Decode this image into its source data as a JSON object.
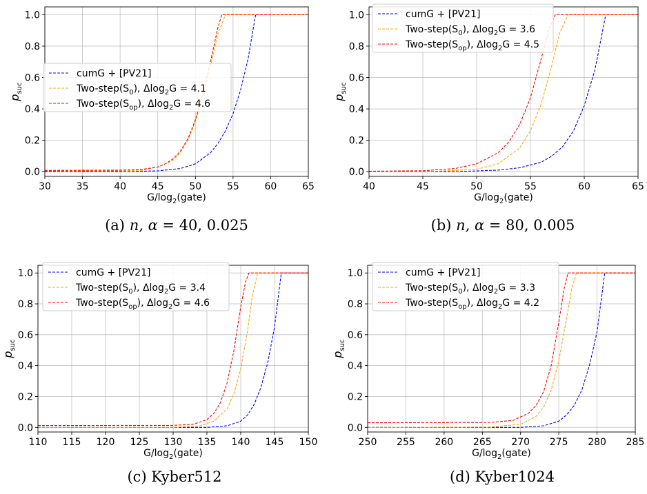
{
  "chart_data": [
    {
      "type": "line",
      "caption": {
        "prefix": "(a) ",
        "var": "n, α",
        "eq": " = 40, 0.025"
      },
      "xlabel": {
        "main": "G/log",
        "sub": "2",
        "tail": "(gate)"
      },
      "ylabel": {
        "main": "p",
        "sub": "suc"
      },
      "xlim": [
        30,
        65
      ],
      "ylim": [
        -0.03,
        1.05
      ],
      "xticks": [
        "30",
        "35",
        "40",
        "45",
        "50",
        "55",
        "60",
        "65"
      ],
      "yticks": [
        "0.0",
        "0.2",
        "0.4",
        "0.6",
        "0.8",
        "1.0"
      ],
      "grid": true,
      "legend_position": "center-left",
      "series": [
        {
          "legend": {
            "main": "cumG + [PV21]"
          },
          "color": "#0000ff",
          "x": [
            30,
            40,
            45,
            48,
            50,
            52,
            53,
            54,
            55,
            56,
            57,
            58,
            65
          ],
          "y": [
            0.0,
            0.0,
            0.005,
            0.02,
            0.05,
            0.12,
            0.18,
            0.26,
            0.37,
            0.52,
            0.72,
            1.0,
            1.0
          ]
        },
        {
          "legend": {
            "main": "Two-step(S",
            "sub": "0",
            "tail": "), Δlog",
            "sub2": "2",
            "tail2": "G = 4.1"
          },
          "color": "#ffa500",
          "x": [
            30,
            40,
            43,
            45,
            47,
            48,
            49,
            50,
            51,
            52,
            53,
            54,
            65
          ],
          "y": [
            0.005,
            0.005,
            0.01,
            0.03,
            0.07,
            0.12,
            0.2,
            0.32,
            0.48,
            0.67,
            0.88,
            1.0,
            1.0
          ]
        },
        {
          "legend": {
            "main": "Two-step(S",
            "sub": "op",
            "tail": "), Δlog",
            "sub2": "2",
            "tail2": "G = 4.6"
          },
          "color": "#ff0000",
          "x": [
            30,
            40,
            43,
            45,
            46,
            47,
            48,
            49,
            50,
            51,
            52,
            53,
            53.5,
            65
          ],
          "y": [
            0.008,
            0.01,
            0.015,
            0.03,
            0.05,
            0.08,
            0.13,
            0.21,
            0.33,
            0.5,
            0.7,
            0.92,
            1.0,
            1.0
          ]
        }
      ]
    },
    {
      "type": "line",
      "caption": {
        "prefix": "(b) ",
        "var": "n, α",
        "eq": " = 80, 0.005"
      },
      "xlabel": {
        "main": "G/log",
        "sub": "2",
        "tail": "(gate)"
      },
      "ylabel": {
        "main": "p",
        "sub": "suc"
      },
      "xlim": [
        40,
        65
      ],
      "ylim": [
        -0.03,
        1.05
      ],
      "xticks": [
        "40",
        "45",
        "50",
        "55",
        "60",
        "65"
      ],
      "yticks": [
        "0.0",
        "0.2",
        "0.4",
        "0.6",
        "0.8",
        "1.0"
      ],
      "grid": true,
      "legend_position": "top-left",
      "series": [
        {
          "legend": {
            "main": "cumG + [PV21]"
          },
          "color": "#0000ff",
          "x": [
            40,
            48,
            52,
            54,
            56,
            57,
            58,
            59,
            60,
            61,
            62,
            65
          ],
          "y": [
            0.0,
            0.0,
            0.01,
            0.025,
            0.06,
            0.1,
            0.16,
            0.26,
            0.42,
            0.65,
            1.0,
            1.0
          ]
        },
        {
          "legend": {
            "main": "Two-step(S",
            "sub": "0",
            "tail": "), Δlog",
            "sub2": "2",
            "tail2": "G = 3.6"
          },
          "color": "#ffa500",
          "x": [
            40,
            46,
            50,
            52,
            54,
            55,
            56,
            57,
            57.7,
            58.5,
            65
          ],
          "y": [
            0.0,
            0.002,
            0.015,
            0.05,
            0.15,
            0.26,
            0.43,
            0.68,
            0.88,
            1.0,
            1.0
          ]
        },
        {
          "legend": {
            "main": "Two-step(S",
            "sub": "op",
            "tail": "), Δlog",
            "sub2": "2",
            "tail2": "G = 4.5"
          },
          "color": "#ff0000",
          "x": [
            40,
            45,
            48,
            50,
            52,
            53,
            54,
            55,
            56,
            56.7,
            57.3,
            65
          ],
          "y": [
            0.003,
            0.006,
            0.02,
            0.05,
            0.12,
            0.19,
            0.3,
            0.47,
            0.72,
            0.9,
            1.0,
            1.0
          ]
        }
      ]
    },
    {
      "type": "line",
      "caption": {
        "prefix": "(c) Kyber512"
      },
      "xlabel": {
        "main": "G/log",
        "sub": "2",
        "tail": "(gate)"
      },
      "ylabel": {
        "main": "p",
        "sub": "suc"
      },
      "xlim": [
        110,
        150
      ],
      "ylim": [
        -0.03,
        1.05
      ],
      "xticks": [
        "110",
        "115",
        "120",
        "125",
        "130",
        "135",
        "140",
        "145",
        "150"
      ],
      "yticks": [
        "0.0",
        "0.2",
        "0.4",
        "0.6",
        "0.8",
        "1.0"
      ],
      "grid": true,
      "legend_position": "top-left",
      "series": [
        {
          "legend": {
            "main": "cumG + [PV21]"
          },
          "color": "#0000ff",
          "x": [
            110,
            135,
            138,
            140,
            141,
            142,
            143,
            144,
            145,
            146,
            150
          ],
          "y": [
            0.0,
            0.0,
            0.01,
            0.04,
            0.08,
            0.15,
            0.26,
            0.42,
            0.65,
            1.0,
            1.0
          ]
        },
        {
          "legend": {
            "main": "Two-step(S",
            "sub": "0",
            "tail": "), Δlog",
            "sub2": "2",
            "tail2": "G = 3.4"
          },
          "color": "#ffa500",
          "x": [
            110,
            130,
            134,
            136,
            138,
            139,
            140,
            141,
            141.7,
            142.5,
            150
          ],
          "y": [
            0.0,
            0.001,
            0.01,
            0.04,
            0.12,
            0.22,
            0.38,
            0.62,
            0.85,
            1.0,
            1.0
          ]
        },
        {
          "legend": {
            "main": "Two-step(S",
            "sub": "op",
            "tail": "), Δlog",
            "sub2": "2",
            "tail2": "G = 4.6"
          },
          "color": "#ff0000",
          "x": [
            110,
            130,
            133,
            135,
            136,
            137,
            138,
            139,
            140,
            140.7,
            141.2,
            150
          ],
          "y": [
            0.012,
            0.013,
            0.02,
            0.05,
            0.09,
            0.16,
            0.29,
            0.5,
            0.78,
            0.94,
            1.0,
            1.0
          ]
        }
      ]
    },
    {
      "type": "line",
      "caption": {
        "prefix": "(d) Kyber1024"
      },
      "xlabel": {
        "main": "G/log",
        "sub": "2",
        "tail": "(gate)"
      },
      "ylabel": {
        "main": "p",
        "sub": "suc"
      },
      "xlim": [
        250,
        285
      ],
      "ylim": [
        -0.03,
        1.05
      ],
      "xticks": [
        "250",
        "255",
        "260",
        "265",
        "270",
        "275",
        "280",
        "285"
      ],
      "yticks": [
        "0.0",
        "0.2",
        "0.4",
        "0.6",
        "0.8",
        "1.0"
      ],
      "grid": true,
      "legend_position": "top-left",
      "series": [
        {
          "legend": {
            "main": "cumG + [PV21]"
          },
          "color": "#0000ff",
          "x": [
            250,
            270,
            273,
            275,
            276,
            277,
            278,
            279,
            280,
            281,
            285
          ],
          "y": [
            0.0,
            0.0,
            0.01,
            0.04,
            0.08,
            0.14,
            0.24,
            0.4,
            0.62,
            1.0,
            1.0
          ]
        },
        {
          "legend": {
            "main": "Two-step(S",
            "sub": "0",
            "tail": "), Δlog",
            "sub2": "2",
            "tail2": "G = 3.3"
          },
          "color": "#ffa500",
          "x": [
            250,
            266,
            270,
            272,
            273,
            274,
            275,
            276,
            276.7,
            277.3,
            285
          ],
          "y": [
            0.0,
            0.002,
            0.02,
            0.07,
            0.13,
            0.24,
            0.43,
            0.7,
            0.9,
            1.0,
            1.0
          ]
        },
        {
          "legend": {
            "main": "Two-step(S",
            "sub": "op",
            "tail": "), Δlog",
            "sub2": "2",
            "tail2": "G = 4.2"
          },
          "color": "#ff0000",
          "x": [
            250,
            266,
            269,
            271,
            272,
            273,
            274,
            275,
            275.7,
            276.2,
            285
          ],
          "y": [
            0.03,
            0.032,
            0.045,
            0.09,
            0.14,
            0.23,
            0.4,
            0.68,
            0.9,
            1.0,
            1.0
          ]
        }
      ]
    }
  ]
}
